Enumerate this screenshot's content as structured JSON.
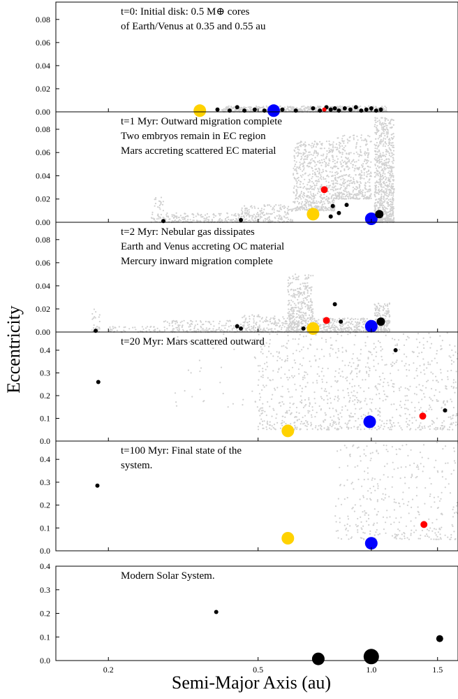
{
  "chart_data": {
    "type": "scatter",
    "xlabel": "Semi-Major Axis (au)",
    "ylabel": "Eccentricity",
    "xscale": "log",
    "x_ticks": [
      0.2,
      0.5,
      1.0,
      1.5
    ],
    "colors": {
      "background_particles": "#d0d0d0",
      "embryos": "#000000",
      "mercury": "#000000",
      "venus": "#ffd200",
      "earth": "#0000ff",
      "mars": "#ff0000",
      "modern_planets": "#000000"
    },
    "panels": [
      {
        "annotation": [
          "t=0: Initial disk: 0.5 M⊕ cores",
          "of Earth/Venus at 0.35 and 0.55 au"
        ],
        "ylim": [
          0,
          0.095
        ],
        "y_ticks": [
          0.0,
          0.02,
          0.04,
          0.06,
          0.08
        ],
        "tick_format": "0.00",
        "background_bands": [
          {
            "x": [
              0.4,
              1.1
            ],
            "e": [
              0.0,
              0.005
            ],
            "n": 700
          }
        ],
        "points": [
          {
            "x": 0.35,
            "e": 0.001,
            "size": "large",
            "color": "venus"
          },
          {
            "x": 0.55,
            "e": 0.001,
            "size": "large",
            "color": "earth"
          },
          {
            "x": 0.39,
            "e": 0.002,
            "size": "small",
            "color": "embryos"
          },
          {
            "x": 0.42,
            "e": 0.001,
            "size": "small",
            "color": "embryos"
          },
          {
            "x": 0.44,
            "e": 0.004,
            "size": "small",
            "color": "embryos"
          },
          {
            "x": 0.46,
            "e": 0.001,
            "size": "small",
            "color": "embryos"
          },
          {
            "x": 0.49,
            "e": 0.002,
            "size": "small",
            "color": "embryos"
          },
          {
            "x": 0.52,
            "e": 0.001,
            "size": "small",
            "color": "embryos"
          },
          {
            "x": 0.58,
            "e": 0.002,
            "size": "small",
            "color": "embryos"
          },
          {
            "x": 0.63,
            "e": 0.001,
            "size": "small",
            "color": "embryos"
          },
          {
            "x": 0.7,
            "e": 0.003,
            "size": "small",
            "color": "embryos"
          },
          {
            "x": 0.73,
            "e": 0.001,
            "size": "small",
            "color": "embryos"
          },
          {
            "x": 0.76,
            "e": 0.004,
            "size": "small",
            "color": "embryos"
          },
          {
            "x": 0.78,
            "e": 0.002,
            "size": "small",
            "color": "embryos"
          },
          {
            "x": 0.8,
            "e": 0.003,
            "size": "small",
            "color": "embryos"
          },
          {
            "x": 0.82,
            "e": 0.001,
            "size": "small",
            "color": "embryos"
          },
          {
            "x": 0.85,
            "e": 0.003,
            "size": "small",
            "color": "embryos"
          },
          {
            "x": 0.88,
            "e": 0.002,
            "size": "small",
            "color": "embryos"
          },
          {
            "x": 0.91,
            "e": 0.004,
            "size": "small",
            "color": "embryos"
          },
          {
            "x": 0.94,
            "e": 0.001,
            "size": "small",
            "color": "embryos"
          },
          {
            "x": 0.97,
            "e": 0.002,
            "size": "small",
            "color": "embryos"
          },
          {
            "x": 1.0,
            "e": 0.003,
            "size": "small",
            "color": "embryos"
          },
          {
            "x": 1.03,
            "e": 0.001,
            "size": "small",
            "color": "embryos"
          },
          {
            "x": 1.06,
            "e": 0.002,
            "size": "small",
            "color": "embryos"
          },
          {
            "x": 0.75,
            "e": 0.002,
            "size": "tiny",
            "color": "mars"
          }
        ]
      },
      {
        "annotation": [
          "t=1 Myr: Outward migration complete",
          "Two embryos remain in EC region",
          "Mars accreting scattered EC material"
        ],
        "ylim": [
          0,
          0.095
        ],
        "y_ticks": [
          0.0,
          0.02,
          0.04,
          0.06,
          0.08
        ],
        "tick_format": "0.00",
        "background_bands": [
          {
            "x": [
              0.26,
              0.28
            ],
            "e": [
              0.0,
              0.025
            ],
            "n": 40
          },
          {
            "x": [
              0.28,
              0.45
            ],
            "e": [
              0.0,
              0.008
            ],
            "n": 180
          },
          {
            "x": [
              0.45,
              0.62
            ],
            "e": [
              0.0,
              0.015
            ],
            "n": 200
          },
          {
            "x": [
              0.62,
              0.8
            ],
            "e": [
              0.01,
              0.07
            ],
            "n": 600
          },
          {
            "x": [
              0.8,
              1.0
            ],
            "e": [
              0.02,
              0.075
            ],
            "n": 450
          },
          {
            "x": [
              1.02,
              1.15
            ],
            "e": [
              0.0,
              0.09
            ],
            "n": 750
          }
        ],
        "points": [
          {
            "x": 0.28,
            "e": 0.001,
            "size": "small",
            "color": "embryos"
          },
          {
            "x": 0.45,
            "e": 0.002,
            "size": "small",
            "color": "embryos"
          },
          {
            "x": 0.7,
            "e": 0.007,
            "size": "large",
            "color": "venus"
          },
          {
            "x": 0.75,
            "e": 0.028,
            "size": "medium",
            "color": "mars"
          },
          {
            "x": 0.79,
            "e": 0.014,
            "size": "small",
            "color": "embryos"
          },
          {
            "x": 0.82,
            "e": 0.008,
            "size": "small",
            "color": "embryos"
          },
          {
            "x": 0.86,
            "e": 0.015,
            "size": "small",
            "color": "embryos"
          },
          {
            "x": 0.78,
            "e": 0.005,
            "size": "small",
            "color": "embryos"
          },
          {
            "x": 1.0,
            "e": 0.003,
            "size": "large",
            "color": "earth"
          },
          {
            "x": 1.05,
            "e": 0.007,
            "size": "medium-black",
            "color": "embryos"
          }
        ]
      },
      {
        "annotation": [
          "t=2 Myr: Nebular gas dissipates",
          "Earth and Venus accreting OC material",
          "Mercury inward migration complete"
        ],
        "ylim": [
          0,
          0.095
        ],
        "y_ticks": [
          0.0,
          0.02,
          0.04,
          0.06,
          0.08
        ],
        "tick_format": "0.00",
        "background_bands": [
          {
            "x": [
              0.18,
              0.19
            ],
            "e": [
              0.0,
              0.02
            ],
            "n": 25
          },
          {
            "x": [
              0.2,
              0.28
            ],
            "e": [
              0.0,
              0.005
            ],
            "n": 60
          },
          {
            "x": [
              0.28,
              0.45
            ],
            "e": [
              0.0,
              0.01
            ],
            "n": 160
          },
          {
            "x": [
              0.45,
              0.62
            ],
            "e": [
              0.0,
              0.015
            ],
            "n": 200
          },
          {
            "x": [
              0.6,
              0.7
            ],
            "e": [
              0.0,
              0.05
            ],
            "n": 400
          },
          {
            "x": [
              0.7,
              1.0
            ],
            "e": [
              0.0,
              0.012
            ],
            "n": 300
          },
          {
            "x": [
              1.02,
              1.12
            ],
            "e": [
              0.0,
              0.025
            ],
            "n": 180
          }
        ],
        "points": [
          {
            "x": 0.185,
            "e": 0.001,
            "size": "small",
            "color": "embryos"
          },
          {
            "x": 0.44,
            "e": 0.005,
            "size": "small",
            "color": "embryos"
          },
          {
            "x": 0.45,
            "e": 0.003,
            "size": "small",
            "color": "embryos"
          },
          {
            "x": 0.66,
            "e": 0.003,
            "size": "small",
            "color": "embryos"
          },
          {
            "x": 0.7,
            "e": 0.003,
            "size": "large",
            "color": "venus"
          },
          {
            "x": 0.76,
            "e": 0.01,
            "size": "medium",
            "color": "mars"
          },
          {
            "x": 0.8,
            "e": 0.024,
            "size": "small",
            "color": "embryos"
          },
          {
            "x": 0.83,
            "e": 0.009,
            "size": "small",
            "color": "embryos"
          },
          {
            "x": 1.0,
            "e": 0.005,
            "size": "large",
            "color": "earth"
          },
          {
            "x": 1.06,
            "e": 0.009,
            "size": "medium-black",
            "color": "embryos"
          }
        ]
      },
      {
        "annotation": [
          "t=20 Myr: Mars scattered outward"
        ],
        "ylim": [
          0,
          0.48
        ],
        "y_ticks": [
          0.0,
          0.1,
          0.2,
          0.3,
          0.4
        ],
        "tick_format": "0.0",
        "background_bands": [
          {
            "x": [
              0.5,
              1.7
            ],
            "e": [
              0.05,
              0.48
            ],
            "n": 900
          },
          {
            "x": [
              0.3,
              0.5
            ],
            "e": [
              0.15,
              0.48
            ],
            "n": 40
          }
        ],
        "points": [
          {
            "x": 0.188,
            "e": 0.26,
            "size": "small",
            "color": "embryos"
          },
          {
            "x": 0.6,
            "e": 0.045,
            "size": "large",
            "color": "venus"
          },
          {
            "x": 0.99,
            "e": 0.085,
            "size": "large",
            "color": "earth"
          },
          {
            "x": 1.16,
            "e": 0.4,
            "size": "small",
            "color": "embryos"
          },
          {
            "x": 1.37,
            "e": 0.11,
            "size": "medium",
            "color": "mars"
          },
          {
            "x": 1.57,
            "e": 0.135,
            "size": "small",
            "color": "embryos"
          }
        ]
      },
      {
        "annotation": [
          "t=100 Myr: Final state of the",
          "system."
        ],
        "ylim": [
          0,
          0.48
        ],
        "y_ticks": [
          0.0,
          0.1,
          0.2,
          0.3,
          0.4
        ],
        "tick_format": "0.0",
        "background_bands": [
          {
            "x": [
              0.8,
              1.7
            ],
            "e": [
              0.05,
              0.48
            ],
            "n": 350
          }
        ],
        "points": [
          {
            "x": 0.187,
            "e": 0.285,
            "size": "small",
            "color": "embryos"
          },
          {
            "x": 0.6,
            "e": 0.055,
            "size": "large",
            "color": "venus"
          },
          {
            "x": 1.0,
            "e": 0.033,
            "size": "large",
            "color": "earth"
          },
          {
            "x": 1.38,
            "e": 0.115,
            "size": "medium",
            "color": "mars"
          }
        ]
      },
      {
        "annotation": [
          "Modern Solar System."
        ],
        "ylim": [
          0,
          0.4
        ],
        "y_ticks": [
          0.0,
          0.1,
          0.2,
          0.3,
          0.4
        ],
        "tick_format": "0.0",
        "background_bands": [],
        "points": [
          {
            "x": 0.387,
            "e": 0.206,
            "size": "small",
            "color": "modern_planets"
          },
          {
            "x": 0.723,
            "e": 0.007,
            "size": "large",
            "color": "modern_planets"
          },
          {
            "x": 1.0,
            "e": 0.017,
            "size": "xlarge",
            "color": "modern_planets"
          },
          {
            "x": 1.52,
            "e": 0.093,
            "size": "medium",
            "color": "modern_planets"
          }
        ]
      }
    ]
  }
}
